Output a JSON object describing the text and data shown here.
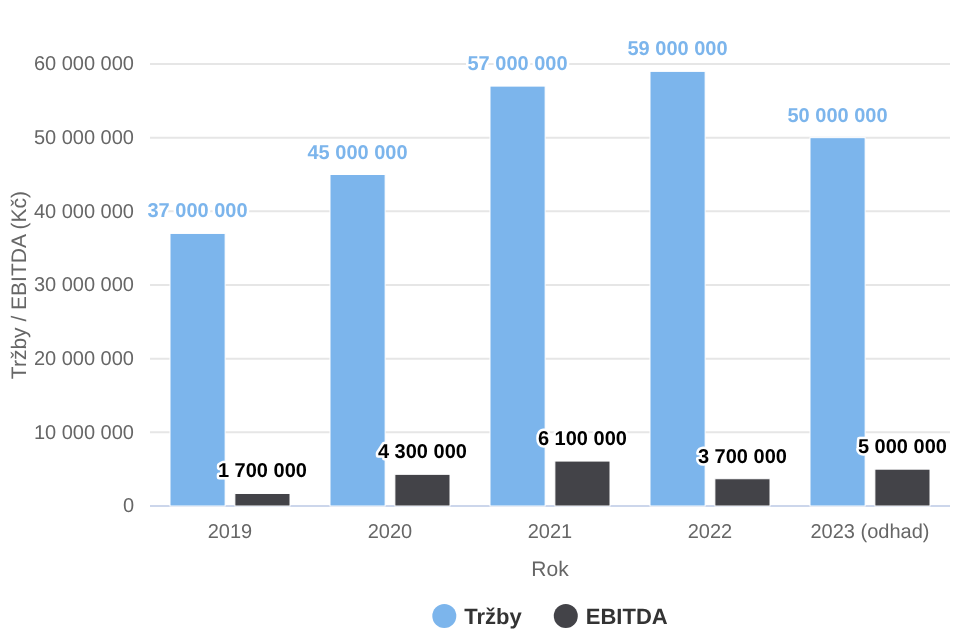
{
  "chart_data": {
    "type": "bar",
    "xlabel": "Rok",
    "ylabel": "Tržby / EBITDA (Kč)",
    "categories": [
      "2019",
      "2020",
      "2021",
      "2022",
      "2023 (odhad)"
    ],
    "series": [
      {
        "name": "Tržby",
        "color": "#7cb5ec",
        "values": [
          37000000,
          45000000,
          57000000,
          59000000,
          50000000
        ],
        "value_labels": [
          "37 000 000",
          "45 000 000",
          "57 000 000",
          "59 000 000",
          "50 000 000"
        ]
      },
      {
        "name": "EBITDA",
        "color": "#434348",
        "values": [
          1700000,
          4300000,
          6100000,
          3700000,
          5000000
        ],
        "value_labels": [
          "1 700 000",
          "4 300 000",
          "6 100 000",
          "3 700 000",
          "5 000 000"
        ]
      }
    ],
    "ylim": [
      0,
      60000000
    ],
    "yticks": [
      {
        "value": 0,
        "label": "0"
      },
      {
        "value": 10000000,
        "label": "10 000 000"
      },
      {
        "value": 20000000,
        "label": "20 000 000"
      },
      {
        "value": 30000000,
        "label": "30 000 000"
      },
      {
        "value": 40000000,
        "label": "40 000 000"
      },
      {
        "value": 50000000,
        "label": "50 000 000"
      },
      {
        "value": 60000000,
        "label": "60 000 000"
      }
    ],
    "grid": "y",
    "legend": "bottom"
  }
}
